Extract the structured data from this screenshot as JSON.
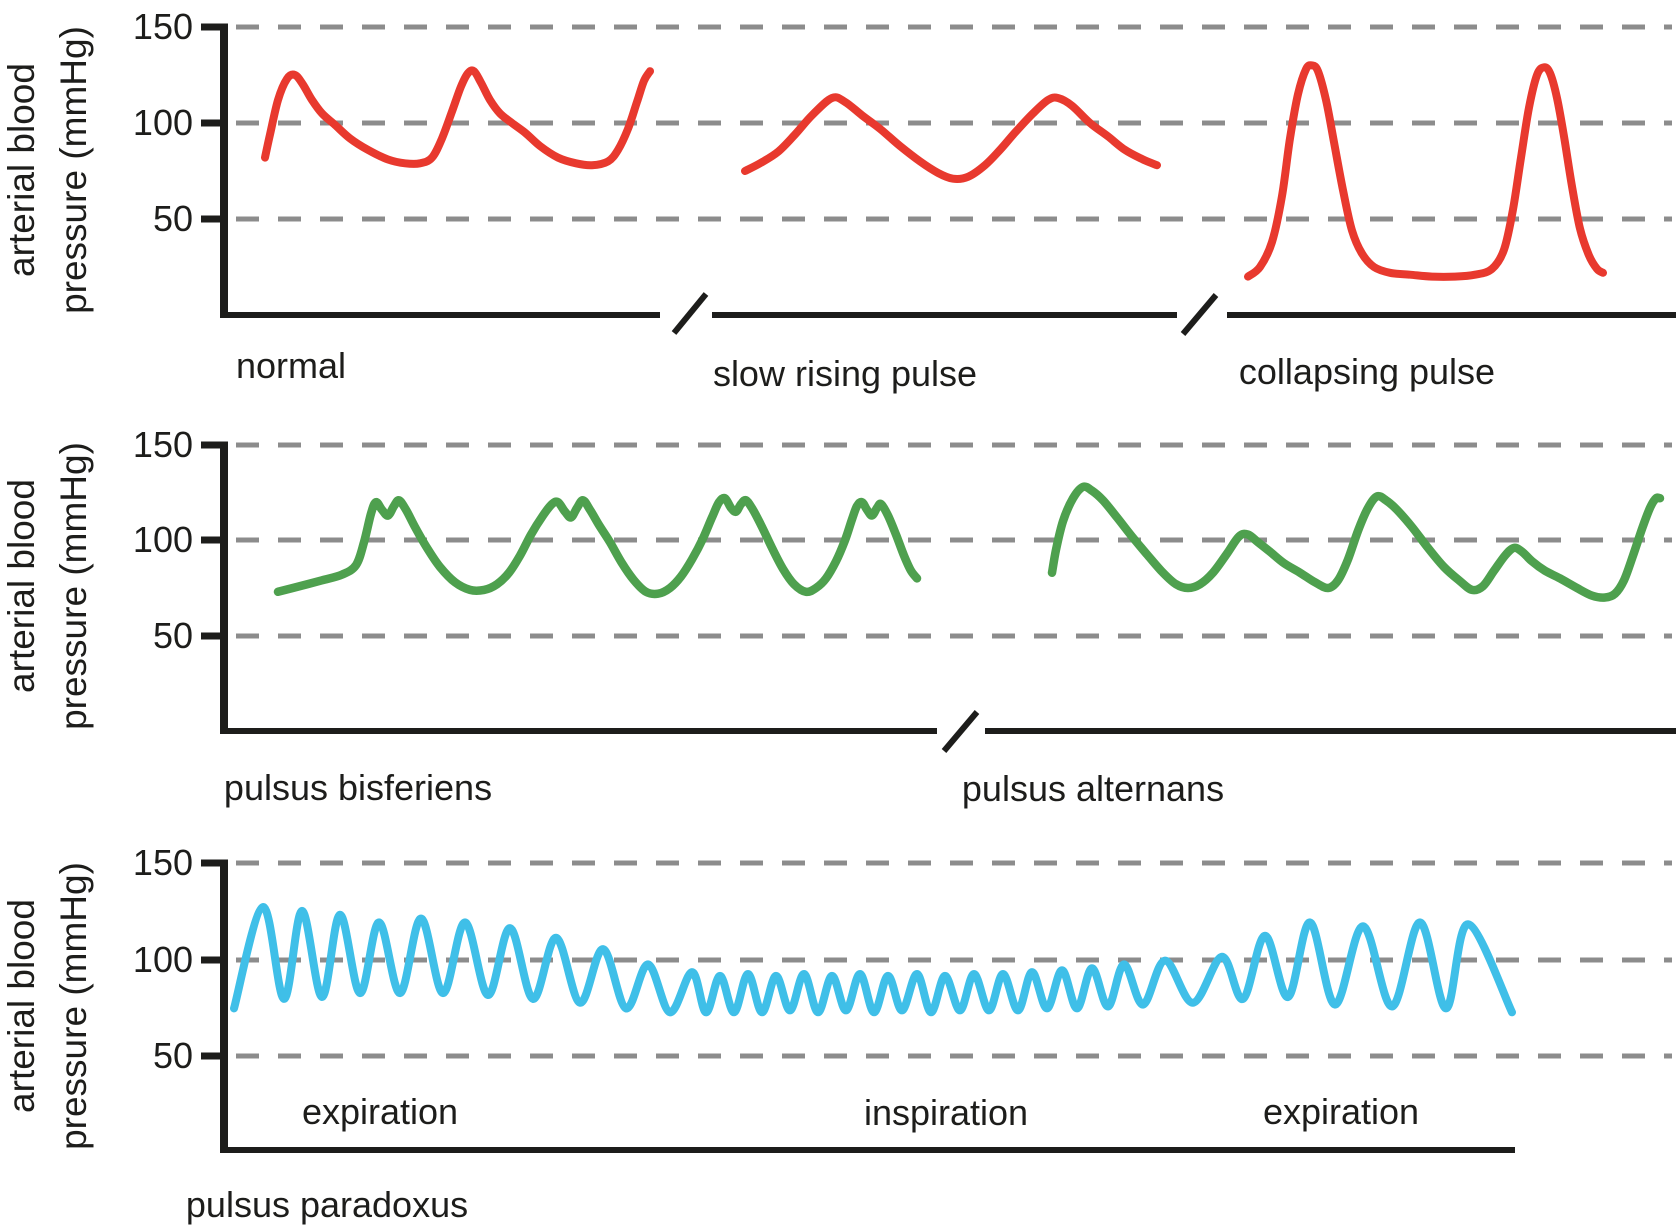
{
  "y_axis": {
    "title_line1": "arterial blood",
    "title_line2": "pressure (mmHg)",
    "tick_labels": [
      "150",
      "100",
      "50"
    ]
  },
  "captions": {
    "normal": "normal",
    "slow_rising": "slow rising pulse",
    "collapsing": "collapsing pulse",
    "bisferiens": "pulsus bisferiens",
    "alternans": "pulsus alternans",
    "paradoxus": "pulsus paradoxus",
    "breath_1": "expiration",
    "breath_2": "inspiration",
    "breath_3": "expiration"
  },
  "colors": {
    "red": "#e8392e",
    "green": "#4ea04e",
    "blue": "#3fbfe8",
    "grid": "#8c8c8c",
    "ink": "#1d1d1b"
  },
  "chart_data": [
    {
      "type": "line",
      "panel": 1,
      "name": "normal",
      "color_key": "red",
      "ylabel": "arterial blood pressure (mmHg)",
      "unit": "mmHg",
      "ylim": [
        0,
        155
      ],
      "yticks": [
        50,
        100,
        150
      ],
      "grid": "dashed-horizontal",
      "points": [
        [
          265,
          82
        ],
        [
          270,
          94
        ],
        [
          278,
          112
        ],
        [
          287,
          123
        ],
        [
          295,
          125
        ],
        [
          303,
          120
        ],
        [
          312,
          112
        ],
        [
          322,
          105
        ],
        [
          335,
          99
        ],
        [
          350,
          92
        ],
        [
          368,
          86
        ],
        [
          388,
          81
        ],
        [
          405,
          79
        ],
        [
          420,
          79
        ],
        [
          432,
          82
        ],
        [
          442,
          92
        ],
        [
          452,
          106
        ],
        [
          461,
          119
        ],
        [
          468,
          126
        ],
        [
          474,
          127
        ],
        [
          481,
          121
        ],
        [
          490,
          112
        ],
        [
          500,
          105
        ],
        [
          512,
          100
        ],
        [
          525,
          95
        ],
        [
          540,
          88
        ],
        [
          558,
          82
        ],
        [
          576,
          79
        ],
        [
          592,
          78
        ],
        [
          608,
          80
        ],
        [
          618,
          86
        ],
        [
          628,
          97
        ],
        [
          637,
          111
        ],
        [
          644,
          122
        ],
        [
          650,
          127
        ]
      ]
    },
    {
      "type": "line",
      "panel": 1,
      "name": "slow rising pulse",
      "color_key": "red",
      "unit": "mmHg",
      "ylim": [
        0,
        155
      ],
      "yticks": [
        50,
        100,
        150
      ],
      "grid": "dashed-horizontal",
      "points": [
        [
          745,
          75
        ],
        [
          760,
          79
        ],
        [
          778,
          85
        ],
        [
          795,
          94
        ],
        [
          812,
          104
        ],
        [
          832,
          113
        ],
        [
          845,
          111
        ],
        [
          862,
          104
        ],
        [
          880,
          97
        ],
        [
          900,
          88
        ],
        [
          920,
          80
        ],
        [
          938,
          74
        ],
        [
          953,
          71
        ],
        [
          968,
          72
        ],
        [
          985,
          78
        ],
        [
          1000,
          86
        ],
        [
          1015,
          95
        ],
        [
          1033,
          105
        ],
        [
          1048,
          112
        ],
        [
          1058,
          113
        ],
        [
          1072,
          109
        ],
        [
          1090,
          100
        ],
        [
          1108,
          93
        ],
        [
          1125,
          86
        ],
        [
          1143,
          81
        ],
        [
          1157,
          78
        ]
      ]
    },
    {
      "type": "line",
      "panel": 1,
      "name": "collapsing pulse",
      "color_key": "red",
      "unit": "mmHg",
      "ylim": [
        0,
        155
      ],
      "yticks": [
        50,
        100,
        150
      ],
      "grid": "dashed-horizontal",
      "points": [
        [
          1248,
          20
        ],
        [
          1260,
          25
        ],
        [
          1272,
          38
        ],
        [
          1282,
          62
        ],
        [
          1290,
          92
        ],
        [
          1298,
          115
        ],
        [
          1306,
          128
        ],
        [
          1312,
          130
        ],
        [
          1318,
          127
        ],
        [
          1326,
          112
        ],
        [
          1334,
          90
        ],
        [
          1343,
          65
        ],
        [
          1352,
          44
        ],
        [
          1362,
          32
        ],
        [
          1374,
          25
        ],
        [
          1390,
          22
        ],
        [
          1410,
          21
        ],
        [
          1432,
          20
        ],
        [
          1455,
          20
        ],
        [
          1475,
          21
        ],
        [
          1492,
          24
        ],
        [
          1504,
          34
        ],
        [
          1513,
          55
        ],
        [
          1521,
          82
        ],
        [
          1529,
          108
        ],
        [
          1537,
          125
        ],
        [
          1544,
          129
        ],
        [
          1550,
          126
        ],
        [
          1557,
          113
        ],
        [
          1564,
          93
        ],
        [
          1572,
          67
        ],
        [
          1580,
          45
        ],
        [
          1589,
          31
        ],
        [
          1597,
          24
        ],
        [
          1603,
          22
        ]
      ]
    },
    {
      "type": "line",
      "panel": 2,
      "name": "pulsus bisferiens",
      "color_key": "green",
      "ylabel": "arterial blood pressure (mmHg)",
      "unit": "mmHg",
      "ylim": [
        0,
        155
      ],
      "yticks": [
        50,
        100,
        150
      ],
      "grid": "dashed-horizontal",
      "points": [
        [
          278,
          73
        ],
        [
          300,
          76
        ],
        [
          322,
          79
        ],
        [
          342,
          82
        ],
        [
          356,
          87
        ],
        [
          364,
          99
        ],
        [
          371,
          114
        ],
        [
          376,
          120
        ],
        [
          382,
          116
        ],
        [
          388,
          113
        ],
        [
          394,
          118
        ],
        [
          399,
          121
        ],
        [
          406,
          116
        ],
        [
          415,
          107
        ],
        [
          427,
          96
        ],
        [
          440,
          86
        ],
        [
          455,
          78
        ],
        [
          470,
          74
        ],
        [
          484,
          74
        ],
        [
          497,
          77
        ],
        [
          509,
          83
        ],
        [
          520,
          92
        ],
        [
          531,
          103
        ],
        [
          543,
          113
        ],
        [
          552,
          119
        ],
        [
          558,
          120
        ],
        [
          565,
          115
        ],
        [
          571,
          112
        ],
        [
          577,
          117
        ],
        [
          583,
          121
        ],
        [
          590,
          116
        ],
        [
          599,
          108
        ],
        [
          610,
          99
        ],
        [
          622,
          88
        ],
        [
          634,
          79
        ],
        [
          646,
          73
        ],
        [
          658,
          72
        ],
        [
          670,
          75
        ],
        [
          681,
          81
        ],
        [
          692,
          90
        ],
        [
          703,
          101
        ],
        [
          712,
          112
        ],
        [
          719,
          120
        ],
        [
          725,
          122
        ],
        [
          731,
          117
        ],
        [
          736,
          115
        ],
        [
          741,
          119
        ],
        [
          746,
          121
        ],
        [
          753,
          116
        ],
        [
          762,
          107
        ],
        [
          772,
          96
        ],
        [
          783,
          85
        ],
        [
          794,
          77
        ],
        [
          806,
          73
        ],
        [
          816,
          75
        ],
        [
          826,
          80
        ],
        [
          836,
          89
        ],
        [
          845,
          100
        ],
        [
          852,
          111
        ],
        [
          857,
          118
        ],
        [
          862,
          120
        ],
        [
          867,
          116
        ],
        [
          872,
          113
        ],
        [
          877,
          117
        ],
        [
          881,
          119
        ],
        [
          888,
          113
        ],
        [
          896,
          103
        ],
        [
          904,
          92
        ],
        [
          911,
          84
        ],
        [
          917,
          80
        ]
      ]
    },
    {
      "type": "line",
      "panel": 2,
      "name": "pulsus alternans",
      "color_key": "green",
      "unit": "mmHg",
      "ylim": [
        0,
        155
      ],
      "yticks": [
        50,
        100,
        150
      ],
      "grid": "dashed-horizontal",
      "points": [
        [
          1052,
          83
        ],
        [
          1056,
          95
        ],
        [
          1063,
          110
        ],
        [
          1073,
          122
        ],
        [
          1083,
          128
        ],
        [
          1092,
          126
        ],
        [
          1103,
          121
        ],
        [
          1117,
          112
        ],
        [
          1132,
          102
        ],
        [
          1148,
          92
        ],
        [
          1163,
          83
        ],
        [
          1176,
          77
        ],
        [
          1188,
          75
        ],
        [
          1200,
          77
        ],
        [
          1213,
          83
        ],
        [
          1227,
          93
        ],
        [
          1239,
          102
        ],
        [
          1248,
          103
        ],
        [
          1258,
          99
        ],
        [
          1270,
          94
        ],
        [
          1284,
          88
        ],
        [
          1300,
          83
        ],
        [
          1315,
          78
        ],
        [
          1328,
          75
        ],
        [
          1338,
          79
        ],
        [
          1348,
          90
        ],
        [
          1358,
          105
        ],
        [
          1368,
          117
        ],
        [
          1377,
          123
        ],
        [
          1386,
          121
        ],
        [
          1397,
          116
        ],
        [
          1412,
          107
        ],
        [
          1428,
          96
        ],
        [
          1444,
          86
        ],
        [
          1459,
          79
        ],
        [
          1472,
          74
        ],
        [
          1483,
          76
        ],
        [
          1494,
          84
        ],
        [
          1505,
          92
        ],
        [
          1514,
          96
        ],
        [
          1522,
          94
        ],
        [
          1532,
          89
        ],
        [
          1545,
          84
        ],
        [
          1560,
          80
        ],
        [
          1577,
          75
        ],
        [
          1592,
          71
        ],
        [
          1605,
          70
        ],
        [
          1615,
          72
        ],
        [
          1624,
          79
        ],
        [
          1633,
          92
        ],
        [
          1642,
          106
        ],
        [
          1650,
          117
        ],
        [
          1656,
          122
        ],
        [
          1660,
          122
        ]
      ]
    },
    {
      "type": "line",
      "panel": 3,
      "name": "pulsus paradoxus",
      "color_key": "blue",
      "ylabel": "arterial blood pressure (mmHg)",
      "unit": "mmHg",
      "ylim": [
        0,
        155
      ],
      "yticks": [
        50,
        100,
        150
      ],
      "grid": "dashed-horizontal",
      "annotations": [
        "expiration",
        "inspiration",
        "expiration"
      ],
      "points": [
        [
          234,
          74
        ],
        [
          263,
          127
        ],
        [
          284,
          79
        ],
        [
          302,
          125
        ],
        [
          322,
          80
        ],
        [
          340,
          123
        ],
        [
          360,
          82
        ],
        [
          379,
          119
        ],
        [
          400,
          82
        ],
        [
          421,
          121
        ],
        [
          443,
          82
        ],
        [
          465,
          119
        ],
        [
          488,
          81
        ],
        [
          510,
          116
        ],
        [
          533,
          79
        ],
        [
          556,
          111
        ],
        [
          580,
          77
        ],
        [
          603,
          105
        ],
        [
          626,
          74
        ],
        [
          648,
          97
        ],
        [
          670,
          72
        ],
        [
          692,
          93
        ],
        [
          706,
          72
        ],
        [
          720,
          91
        ],
        [
          734,
          72
        ],
        [
          748,
          92
        ],
        [
          762,
          72
        ],
        [
          776,
          91
        ],
        [
          790,
          73
        ],
        [
          804,
          92
        ],
        [
          818,
          72
        ],
        [
          832,
          91
        ],
        [
          846,
          73
        ],
        [
          860,
          92
        ],
        [
          874,
          72
        ],
        [
          888,
          91
        ],
        [
          902,
          73
        ],
        [
          917,
          92
        ],
        [
          931,
          72
        ],
        [
          945,
          91
        ],
        [
          960,
          73
        ],
        [
          974,
          92
        ],
        [
          989,
          73
        ],
        [
          1003,
          92
        ],
        [
          1018,
          73
        ],
        [
          1032,
          93
        ],
        [
          1047,
          74
        ],
        [
          1062,
          94
        ],
        [
          1077,
          74
        ],
        [
          1092,
          95
        ],
        [
          1108,
          75
        ],
        [
          1124,
          97
        ],
        [
          1143,
          76
        ],
        [
          1165,
          99
        ],
        [
          1193,
          77
        ],
        [
          1222,
          101
        ],
        [
          1243,
          79
        ],
        [
          1265,
          112
        ],
        [
          1288,
          80
        ],
        [
          1310,
          119
        ],
        [
          1335,
          76
        ],
        [
          1363,
          117
        ],
        [
          1392,
          75
        ],
        [
          1420,
          119
        ],
        [
          1446,
          74
        ],
        [
          1468,
          118
        ],
        [
          1512,
          72
        ]
      ]
    }
  ]
}
